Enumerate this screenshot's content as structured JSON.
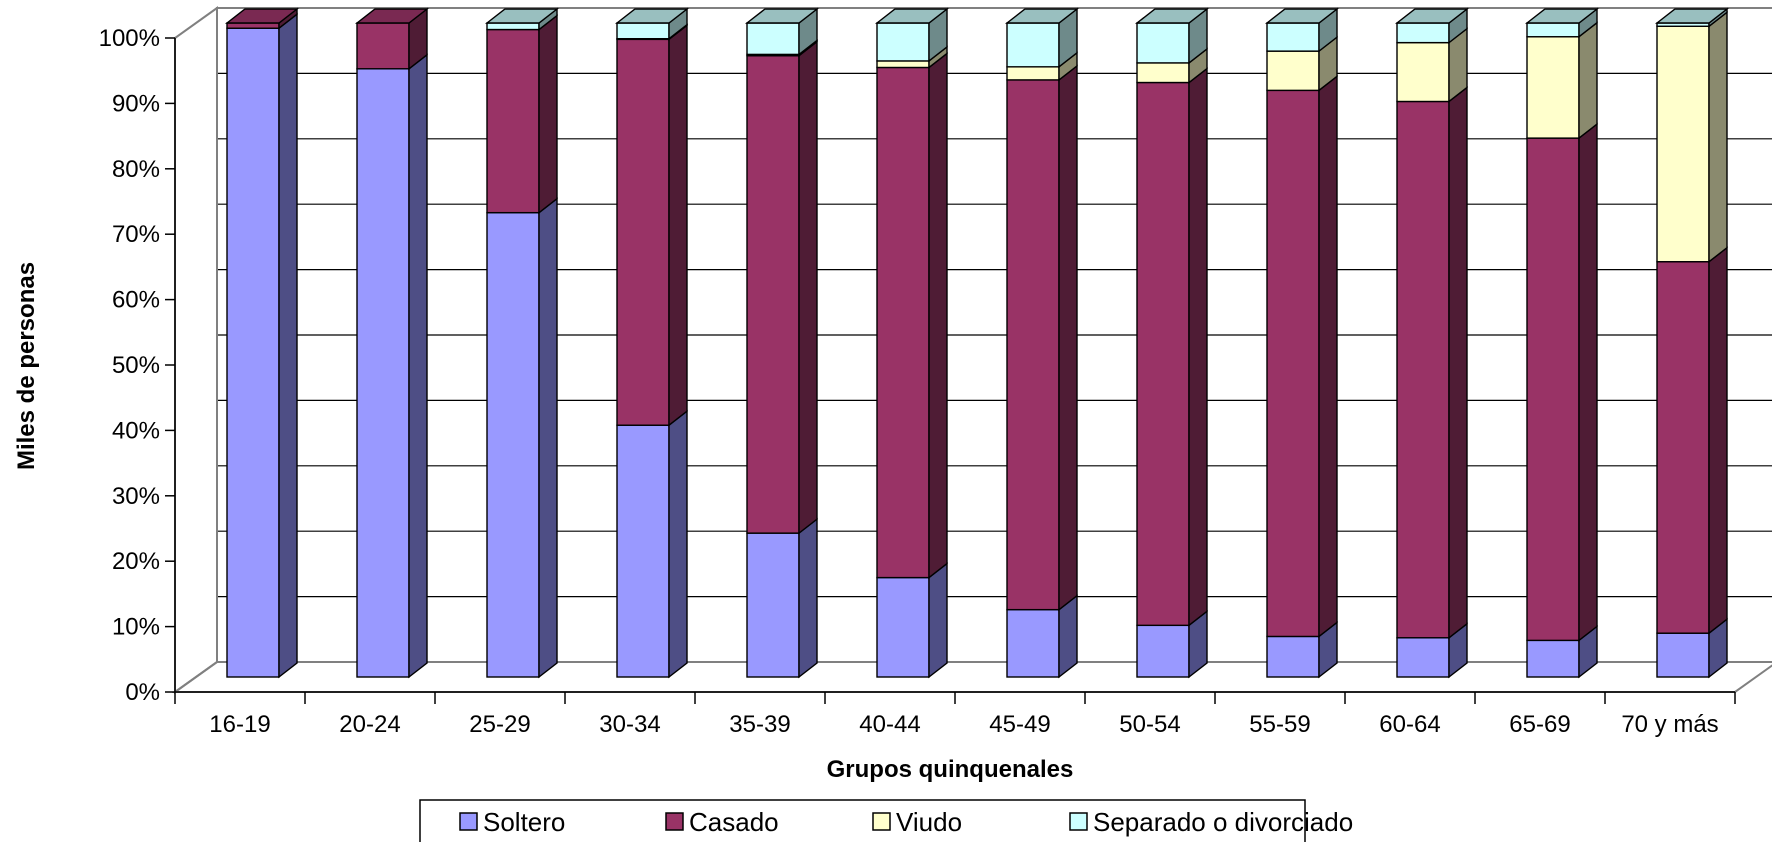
{
  "chart_data": {
    "type": "bar",
    "stacked": true,
    "percent_stacked": true,
    "three_d": true,
    "title": "",
    "xlabel": "Grupos quinquenales",
    "ylabel": "Miles de personas",
    "ylim": [
      0,
      100
    ],
    "y_ticks": [
      "0%",
      "10%",
      "20%",
      "30%",
      "40%",
      "50%",
      "60%",
      "70%",
      "80%",
      "90%",
      "100%"
    ],
    "grid": true,
    "legend_position": "bottom",
    "categories": [
      "16-19",
      "20-24",
      "25-29",
      "30-34",
      "35-39",
      "40-44",
      "45-49",
      "50-54",
      "55-59",
      "60-64",
      "65-69",
      "70 y más"
    ],
    "series": [
      {
        "name": "Soltero",
        "color": "#9999FF",
        "side": "#4E4E85",
        "top": "#7A7AD0",
        "values": [
          99.2,
          93.0,
          71.0,
          38.5,
          22.0,
          15.2,
          10.3,
          7.9,
          6.2,
          6.0,
          5.6,
          6.7
        ]
      },
      {
        "name": "Casado",
        "color": "#993366",
        "side": "#4F1C35",
        "top": "#7A2952",
        "values": [
          0.8,
          7.0,
          28.0,
          59.0,
          73.0,
          78.0,
          81.0,
          83.0,
          83.5,
          82.0,
          76.8,
          56.8
        ]
      },
      {
        "name": "Viudo",
        "color": "#FFFFCC",
        "side": "#8A8A6E",
        "top": "#D6D6A8",
        "values": [
          0.0,
          0.0,
          0.0,
          0.1,
          0.2,
          1.0,
          2.0,
          3.0,
          6.0,
          9.0,
          15.5,
          36.0
        ]
      },
      {
        "name": "Separado o divorciado",
        "color": "#CCFFFF",
        "side": "#6E8A8A",
        "top": "#99BFBF",
        "values": [
          0.0,
          0.0,
          1.0,
          2.4,
          4.8,
          5.8,
          6.7,
          6.1,
          4.3,
          3.0,
          2.1,
          0.5
        ]
      }
    ]
  }
}
